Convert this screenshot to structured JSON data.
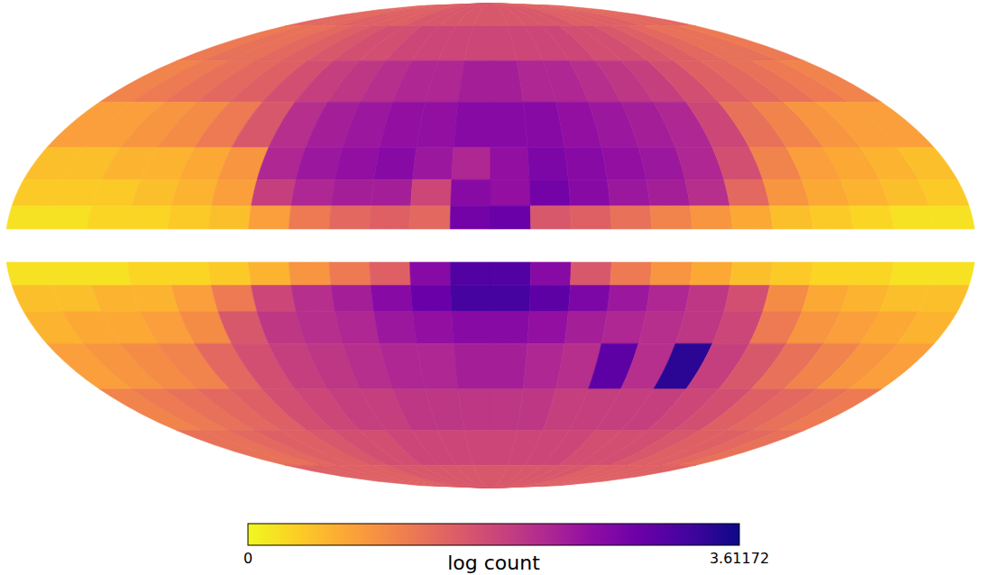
{
  "chart_data": {
    "type": "heatmap",
    "lon_edges": [
      180,
      165,
      150,
      135,
      120,
      105,
      90,
      75,
      60,
      45,
      30,
      15,
      0,
      -15,
      -30,
      -45,
      -60,
      -75,
      -90,
      -105,
      -120,
      -135,
      -150,
      -165,
      -180
    ],
    "lat_edges": [
      90,
      75,
      60,
      45,
      30,
      20,
      12,
      5,
      -5,
      -12,
      -20,
      -30,
      -45,
      -60,
      -75,
      -90
    ],
    "cells": [
      [
        1.4,
        1.4,
        1.4,
        1.5,
        1.5,
        1.5,
        1.5,
        1.6,
        1.6,
        1.6,
        1.6,
        1.6,
        1.6,
        1.6,
        1.6,
        1.6,
        1.6,
        1.5,
        1.5,
        1.5,
        1.5,
        1.4,
        1.4,
        1.4
      ],
      [
        1.2,
        1.3,
        1.3,
        1.4,
        1.5,
        1.6,
        1.7,
        1.7,
        1.8,
        1.8,
        1.8,
        1.8,
        1.8,
        1.8,
        1.8,
        1.8,
        1.7,
        1.7,
        1.6,
        1.5,
        1.4,
        1.3,
        1.3,
        1.2
      ],
      [
        1.1,
        1.2,
        1.3,
        1.4,
        1.5,
        1.7,
        1.9,
        2.0,
        2.1,
        2.2,
        2.2,
        2.3,
        2.3,
        2.2,
        2.2,
        2.1,
        2.0,
        1.9,
        1.7,
        1.5,
        1.4,
        1.3,
        1.2,
        1.1
      ],
      [
        0.8,
        0.8,
        0.9,
        1.0,
        1.2,
        1.6,
        2.1,
        2.3,
        2.4,
        2.5,
        2.5,
        2.6,
        2.6,
        2.6,
        2.5,
        2.4,
        2.3,
        2.2,
        1.8,
        1.3,
        1.1,
        0.9,
        0.8,
        0.8
      ],
      [
        0.5,
        0.5,
        0.6,
        0.6,
        0.7,
        0.9,
        2.2,
        2.4,
        2.5,
        2.6,
        2.4,
        2.2,
        2.5,
        2.7,
        2.6,
        2.5,
        2.4,
        2.2,
        1.7,
        1.1,
        0.8,
        0.7,
        0.6,
        0.5
      ],
      [
        0.4,
        0.4,
        0.4,
        0.5,
        0.6,
        0.8,
        1.9,
        2.2,
        2.3,
        2.3,
        1.8,
        2.6,
        2.5,
        2.8,
        2.6,
        2.4,
        2.3,
        2.1,
        1.4,
        0.9,
        0.7,
        0.6,
        0.5,
        0.4
      ],
      [
        0.2,
        0.2,
        0.3,
        0.3,
        0.4,
        0.5,
        0.8,
        1.2,
        1.4,
        1.5,
        1.4,
        2.8,
        2.9,
        1.6,
        1.5,
        1.3,
        1.1,
        0.9,
        0.7,
        0.5,
        0.4,
        0.3,
        0.2,
        0.2
      ],
      [
        null,
        null,
        null,
        null,
        null,
        null,
        null,
        null,
        null,
        null,
        null,
        null,
        null,
        null,
        null,
        null,
        null,
        null,
        null,
        null,
        null,
        null,
        null,
        null
      ],
      [
        0.2,
        0.2,
        0.2,
        0.3,
        0.3,
        0.4,
        0.6,
        0.9,
        1.2,
        1.5,
        2.6,
        3.1,
        3.1,
        2.6,
        1.6,
        1.2,
        0.9,
        0.7,
        0.5,
        0.4,
        0.3,
        0.3,
        0.2,
        0.2
      ],
      [
        0.5,
        0.5,
        0.6,
        0.6,
        0.8,
        1.2,
        1.8,
        2.1,
        2.3,
        2.6,
        2.9,
        3.2,
        3.2,
        3.0,
        2.7,
        2.4,
        2.2,
        2.0,
        1.7,
        1.0,
        0.7,
        0.6,
        0.5,
        0.5
      ],
      [
        0.6,
        0.7,
        0.7,
        0.8,
        1.0,
        1.6,
        2.0,
        2.1,
        2.2,
        2.4,
        2.5,
        2.6,
        2.6,
        2.5,
        2.3,
        2.2,
        2.1,
        2.0,
        1.8,
        1.2,
        0.9,
        0.8,
        0.7,
        0.6
      ],
      [
        0.8,
        0.9,
        1.0,
        1.1,
        1.4,
        1.7,
        1.9,
        2.0,
        2.1,
        2.2,
        2.2,
        2.3,
        2.3,
        2.2,
        2.1,
        3.0,
        2.1,
        3.4,
        1.9,
        1.6,
        1.3,
        1.1,
        0.9,
        0.8
      ],
      [
        1.1,
        1.2,
        1.3,
        1.4,
        1.5,
        1.7,
        1.8,
        1.9,
        1.9,
        2.0,
        2.0,
        2.0,
        2.0,
        2.0,
        1.9,
        1.9,
        1.9,
        1.9,
        1.8,
        1.7,
        1.5,
        1.4,
        1.3,
        1.2
      ],
      [
        1.3,
        1.3,
        1.4,
        1.5,
        1.5,
        1.6,
        1.7,
        1.7,
        1.8,
        1.8,
        1.8,
        1.8,
        1.8,
        1.8,
        1.8,
        1.8,
        1.7,
        1.7,
        1.7,
        1.6,
        1.5,
        1.5,
        1.4,
        1.3
      ],
      [
        1.5,
        1.5,
        1.5,
        1.5,
        1.5,
        1.5,
        1.6,
        1.6,
        1.6,
        1.6,
        1.6,
        1.6,
        1.6,
        1.6,
        1.6,
        1.6,
        1.6,
        1.6,
        1.5,
        1.5,
        1.5,
        1.5,
        1.5,
        1.5
      ]
    ],
    "color_range": [
      0,
      3.61172
    ],
    "color_ticks": [
      0,
      3.61172
    ],
    "color_label": "log count",
    "tick_labels": false
  }
}
